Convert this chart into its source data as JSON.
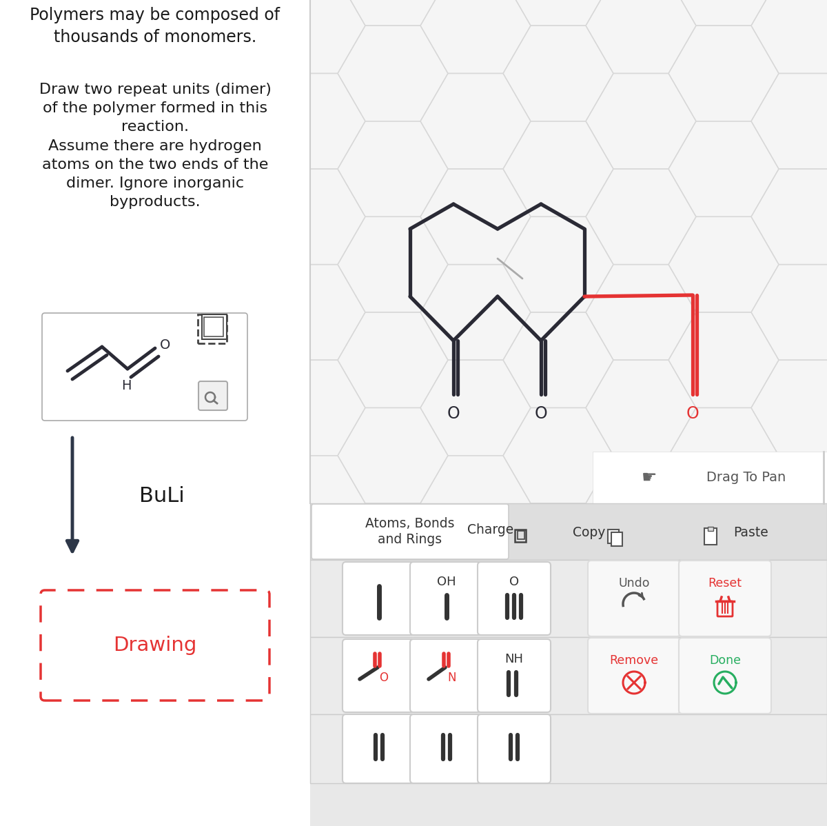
{
  "bg_color": "#ffffff",
  "divider_color": "#cccccc",
  "text_color": "#1a1a1a",
  "red_color": "#e53333",
  "arrow_color": "#2d3748",
  "hex_line_color": "#d8d8d8",
  "molecule_color": "#2a2a35",
  "title_text": "Polymers may be composed of\nthousands of monomers.",
  "body_text": "Draw two repeat units (dimer)\nof the polymer formed in this\nreaction.\nAssume there are hydrogen\natoms on the two ends of the\ndimer. Ignore inorganic\nbyproducts.",
  "reagent_text": "BuLi",
  "drawing_text": "Drawing",
  "drag_text": "Drag To Pan",
  "atoms_bonds_text": "Atoms, Bonds\nand Rings",
  "charge_text": "Charge",
  "copy_text": "Copy",
  "paste_text": "Paste",
  "undo_text": "Undo",
  "reset_text": "Reset",
  "remove_text": "Remove",
  "done_text": "Done",
  "oh_text": "OH",
  "o_text": "O",
  "nh_text": "NH",
  "h_text": "H"
}
